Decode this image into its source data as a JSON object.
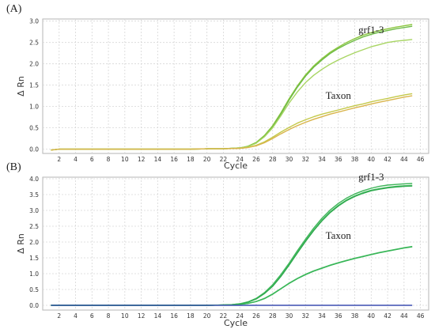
{
  "panels": [
    {
      "label": "(A)"
    },
    {
      "label": "(B)"
    }
  ],
  "chart_data": [
    {
      "type": "line",
      "panel": "(A)",
      "xlabel": "Cycle",
      "ylabel": "Δ Rn",
      "xlim": [
        0,
        47
      ],
      "ylim": [
        -0.1,
        3.05
      ],
      "xticks": [
        2,
        4,
        6,
        8,
        10,
        12,
        14,
        16,
        18,
        20,
        22,
        24,
        26,
        28,
        30,
        32,
        34,
        36,
        38,
        40,
        42,
        44,
        46
      ],
      "yticks": [
        0.0,
        0.5,
        1.0,
        1.5,
        2.0,
        2.5,
        3.0
      ],
      "ytick_labels": [
        "0.0",
        "0.5",
        "1.0",
        "1.5",
        "2.0",
        "2.5",
        "3.0"
      ],
      "grid": true,
      "annotations": [
        {
          "text": "grf1-3",
          "x": 40,
          "y": 2.72
        },
        {
          "text": "Taxon",
          "x": 36,
          "y": 1.18
        }
      ],
      "series": [
        {
          "color": "#8cc63f",
          "x": [
            1,
            2,
            4,
            6,
            8,
            10,
            12,
            14,
            16,
            18,
            20,
            22,
            24,
            25,
            26,
            27,
            28,
            29,
            30,
            31,
            32,
            33,
            34,
            35,
            36,
            37,
            38,
            39,
            40,
            41,
            42,
            43,
            44,
            45
          ],
          "values": [
            -0.02,
            0.0,
            0.0,
            0.0,
            0.0,
            0.0,
            0.0,
            0.0,
            0.0,
            0.0,
            0.01,
            0.01,
            0.03,
            0.07,
            0.16,
            0.32,
            0.55,
            0.85,
            1.18,
            1.48,
            1.74,
            1.95,
            2.12,
            2.27,
            2.39,
            2.5,
            2.59,
            2.67,
            2.73,
            2.78,
            2.82,
            2.86,
            2.89,
            2.92
          ]
        },
        {
          "color": "#6dbb45",
          "x": [
            1,
            2,
            4,
            6,
            8,
            10,
            12,
            14,
            16,
            18,
            20,
            22,
            24,
            25,
            26,
            27,
            28,
            29,
            30,
            31,
            32,
            33,
            34,
            35,
            36,
            37,
            38,
            39,
            40,
            41,
            42,
            43,
            44,
            45
          ],
          "values": [
            -0.02,
            0.0,
            0.0,
            0.0,
            0.0,
            0.0,
            0.0,
            0.0,
            0.0,
            0.0,
            0.01,
            0.01,
            0.03,
            0.06,
            0.15,
            0.3,
            0.52,
            0.82,
            1.15,
            1.45,
            1.71,
            1.92,
            2.09,
            2.24,
            2.36,
            2.46,
            2.55,
            2.63,
            2.69,
            2.74,
            2.78,
            2.82,
            2.85,
            2.88
          ]
        },
        {
          "color": "#a8d563",
          "x": [
            1,
            2,
            4,
            6,
            8,
            10,
            12,
            14,
            16,
            18,
            20,
            22,
            24,
            25,
            26,
            27,
            28,
            29,
            30,
            31,
            32,
            33,
            34,
            35,
            36,
            37,
            38,
            39,
            40,
            41,
            42,
            43,
            44,
            45
          ],
          "values": [
            -0.02,
            0.0,
            0.0,
            0.0,
            0.0,
            0.0,
            0.0,
            0.0,
            0.0,
            0.0,
            0.01,
            0.01,
            0.03,
            0.06,
            0.14,
            0.29,
            0.5,
            0.78,
            1.08,
            1.34,
            1.56,
            1.73,
            1.87,
            1.99,
            2.09,
            2.18,
            2.26,
            2.33,
            2.4,
            2.45,
            2.5,
            2.53,
            2.55,
            2.57
          ]
        },
        {
          "color": "#c4c94a",
          "x": [
            1,
            2,
            4,
            6,
            8,
            10,
            12,
            14,
            16,
            18,
            20,
            22,
            24,
            25,
            26,
            27,
            28,
            29,
            30,
            31,
            32,
            33,
            34,
            35,
            36,
            37,
            38,
            39,
            40,
            41,
            42,
            43,
            44,
            45
          ],
          "values": [
            -0.02,
            0.0,
            0.0,
            0.0,
            0.0,
            0.0,
            0.0,
            0.0,
            0.0,
            0.0,
            0.01,
            0.01,
            0.02,
            0.04,
            0.09,
            0.17,
            0.28,
            0.4,
            0.51,
            0.61,
            0.69,
            0.76,
            0.82,
            0.87,
            0.92,
            0.97,
            1.02,
            1.06,
            1.11,
            1.15,
            1.19,
            1.23,
            1.27,
            1.3
          ]
        },
        {
          "color": "#d9b44a",
          "x": [
            1,
            2,
            4,
            6,
            8,
            10,
            12,
            14,
            16,
            18,
            20,
            22,
            24,
            25,
            26,
            27,
            28,
            29,
            30,
            31,
            32,
            33,
            34,
            35,
            36,
            37,
            38,
            39,
            40,
            41,
            42,
            43,
            44,
            45
          ],
          "values": [
            -0.02,
            0.0,
            0.0,
            0.0,
            0.0,
            0.0,
            0.0,
            0.0,
            0.0,
            0.0,
            0.01,
            0.01,
            0.02,
            0.04,
            0.08,
            0.15,
            0.25,
            0.36,
            0.46,
            0.55,
            0.63,
            0.7,
            0.76,
            0.82,
            0.87,
            0.92,
            0.97,
            1.01,
            1.06,
            1.1,
            1.14,
            1.18,
            1.22,
            1.25
          ]
        }
      ]
    },
    {
      "type": "line",
      "panel": "(B)",
      "xlabel": "Cycle",
      "ylabel": "Δ Rn",
      "xlim": [
        0,
        47
      ],
      "ylim": [
        -0.15,
        4.05
      ],
      "xticks": [
        2,
        4,
        6,
        8,
        10,
        12,
        14,
        16,
        18,
        20,
        22,
        24,
        26,
        28,
        30,
        32,
        34,
        36,
        38,
        40,
        42,
        44,
        46
      ],
      "yticks": [
        0.0,
        0.5,
        1.0,
        1.5,
        2.0,
        2.5,
        3.0,
        3.5,
        4.0
      ],
      "ytick_labels": [
        "0.0",
        "0.5",
        "1.0",
        "1.5",
        "2.0",
        "2.5",
        "3.0",
        "3.5",
        "4.0"
      ],
      "grid": true,
      "annotations": [
        {
          "text": "grf1-3",
          "x": 40,
          "y": 3.95
        },
        {
          "text": "Taxon",
          "x": 36,
          "y": 2.1
        }
      ],
      "series": [
        {
          "color": "#3fb55a",
          "x": [
            1,
            2,
            4,
            6,
            8,
            10,
            12,
            14,
            16,
            18,
            20,
            22,
            23,
            24,
            25,
            26,
            27,
            28,
            29,
            30,
            31,
            32,
            33,
            34,
            35,
            36,
            37,
            38,
            39,
            40,
            41,
            42,
            43,
            44,
            45
          ],
          "values": [
            0.0,
            0.0,
            0.0,
            0.0,
            0.0,
            0.0,
            0.0,
            0.0,
            0.0,
            0.0,
            0.0,
            0.01,
            0.02,
            0.05,
            0.11,
            0.22,
            0.4,
            0.65,
            0.97,
            1.33,
            1.72,
            2.09,
            2.44,
            2.75,
            3.01,
            3.22,
            3.39,
            3.52,
            3.62,
            3.7,
            3.76,
            3.8,
            3.82,
            3.84,
            3.85
          ]
        },
        {
          "color": "#4cc267",
          "x": [
            1,
            2,
            4,
            6,
            8,
            10,
            12,
            14,
            16,
            18,
            20,
            22,
            23,
            24,
            25,
            26,
            27,
            28,
            29,
            30,
            31,
            32,
            33,
            34,
            35,
            36,
            37,
            38,
            39,
            40,
            41,
            42,
            43,
            44,
            45
          ],
          "values": [
            0.0,
            0.0,
            0.0,
            0.0,
            0.0,
            0.0,
            0.0,
            0.0,
            0.0,
            0.0,
            0.0,
            0.01,
            0.02,
            0.05,
            0.1,
            0.21,
            0.38,
            0.62,
            0.93,
            1.29,
            1.67,
            2.04,
            2.38,
            2.69,
            2.95,
            3.16,
            3.33,
            3.46,
            3.56,
            3.64,
            3.69,
            3.73,
            3.76,
            3.78,
            3.79
          ]
        },
        {
          "color": "#2ea84d",
          "x": [
            1,
            2,
            4,
            6,
            8,
            10,
            12,
            14,
            16,
            18,
            20,
            22,
            23,
            24,
            25,
            26,
            27,
            28,
            29,
            30,
            31,
            32,
            33,
            34,
            35,
            36,
            37,
            38,
            39,
            40,
            41,
            42,
            43,
            44,
            45
          ],
          "values": [
            0.0,
            0.0,
            0.0,
            0.0,
            0.0,
            0.0,
            0.0,
            0.0,
            0.0,
            0.0,
            0.0,
            0.01,
            0.02,
            0.04,
            0.1,
            0.2,
            0.37,
            0.6,
            0.91,
            1.27,
            1.65,
            2.02,
            2.36,
            2.67,
            2.93,
            3.14,
            3.31,
            3.44,
            3.54,
            3.62,
            3.67,
            3.71,
            3.74,
            3.76,
            3.77
          ]
        },
        {
          "color": "#52c06b",
          "x": [
            1,
            2,
            4,
            6,
            8,
            10,
            12,
            14,
            16,
            18,
            20,
            22,
            23,
            24,
            25,
            26,
            27,
            28,
            29,
            30,
            31,
            32,
            33,
            34,
            35,
            36,
            37,
            38,
            39,
            40,
            41,
            42,
            43,
            44,
            45
          ],
          "values": [
            0.0,
            0.0,
            0.0,
            0.0,
            0.0,
            0.0,
            0.0,
            0.0,
            0.0,
            0.0,
            0.0,
            0.01,
            0.01,
            0.03,
            0.06,
            0.12,
            0.22,
            0.36,
            0.53,
            0.7,
            0.85,
            0.98,
            1.09,
            1.18,
            1.27,
            1.35,
            1.42,
            1.49,
            1.55,
            1.61,
            1.67,
            1.72,
            1.77,
            1.82,
            1.86
          ]
        },
        {
          "color": "#36b556",
          "x": [
            1,
            2,
            4,
            6,
            8,
            10,
            12,
            14,
            16,
            18,
            20,
            22,
            23,
            24,
            25,
            26,
            27,
            28,
            29,
            30,
            31,
            32,
            33,
            34,
            35,
            36,
            37,
            38,
            39,
            40,
            41,
            42,
            43,
            44,
            45
          ],
          "values": [
            0.0,
            0.0,
            0.0,
            0.0,
            0.0,
            0.0,
            0.0,
            0.0,
            0.0,
            0.0,
            0.0,
            0.01,
            0.01,
            0.03,
            0.06,
            0.12,
            0.21,
            0.35,
            0.52,
            0.69,
            0.84,
            0.97,
            1.08,
            1.17,
            1.26,
            1.34,
            1.41,
            1.48,
            1.54,
            1.6,
            1.66,
            1.71,
            1.76,
            1.81,
            1.85
          ]
        },
        {
          "color": "#3d4fb0",
          "x": [
            1,
            2,
            4,
            6,
            8,
            10,
            12,
            14,
            16,
            18,
            20,
            22,
            24,
            26,
            28,
            30,
            32,
            34,
            36,
            38,
            40,
            42,
            44,
            45
          ],
          "values": [
            0.0,
            0.0,
            0.0,
            0.0,
            0.0,
            0.0,
            0.0,
            0.0,
            0.0,
            0.0,
            0.0,
            0.0,
            0.0,
            0.0,
            0.0,
            0.0,
            0.0,
            0.0,
            0.0,
            0.0,
            0.0,
            0.0,
            0.0,
            0.0
          ]
        }
      ]
    }
  ]
}
